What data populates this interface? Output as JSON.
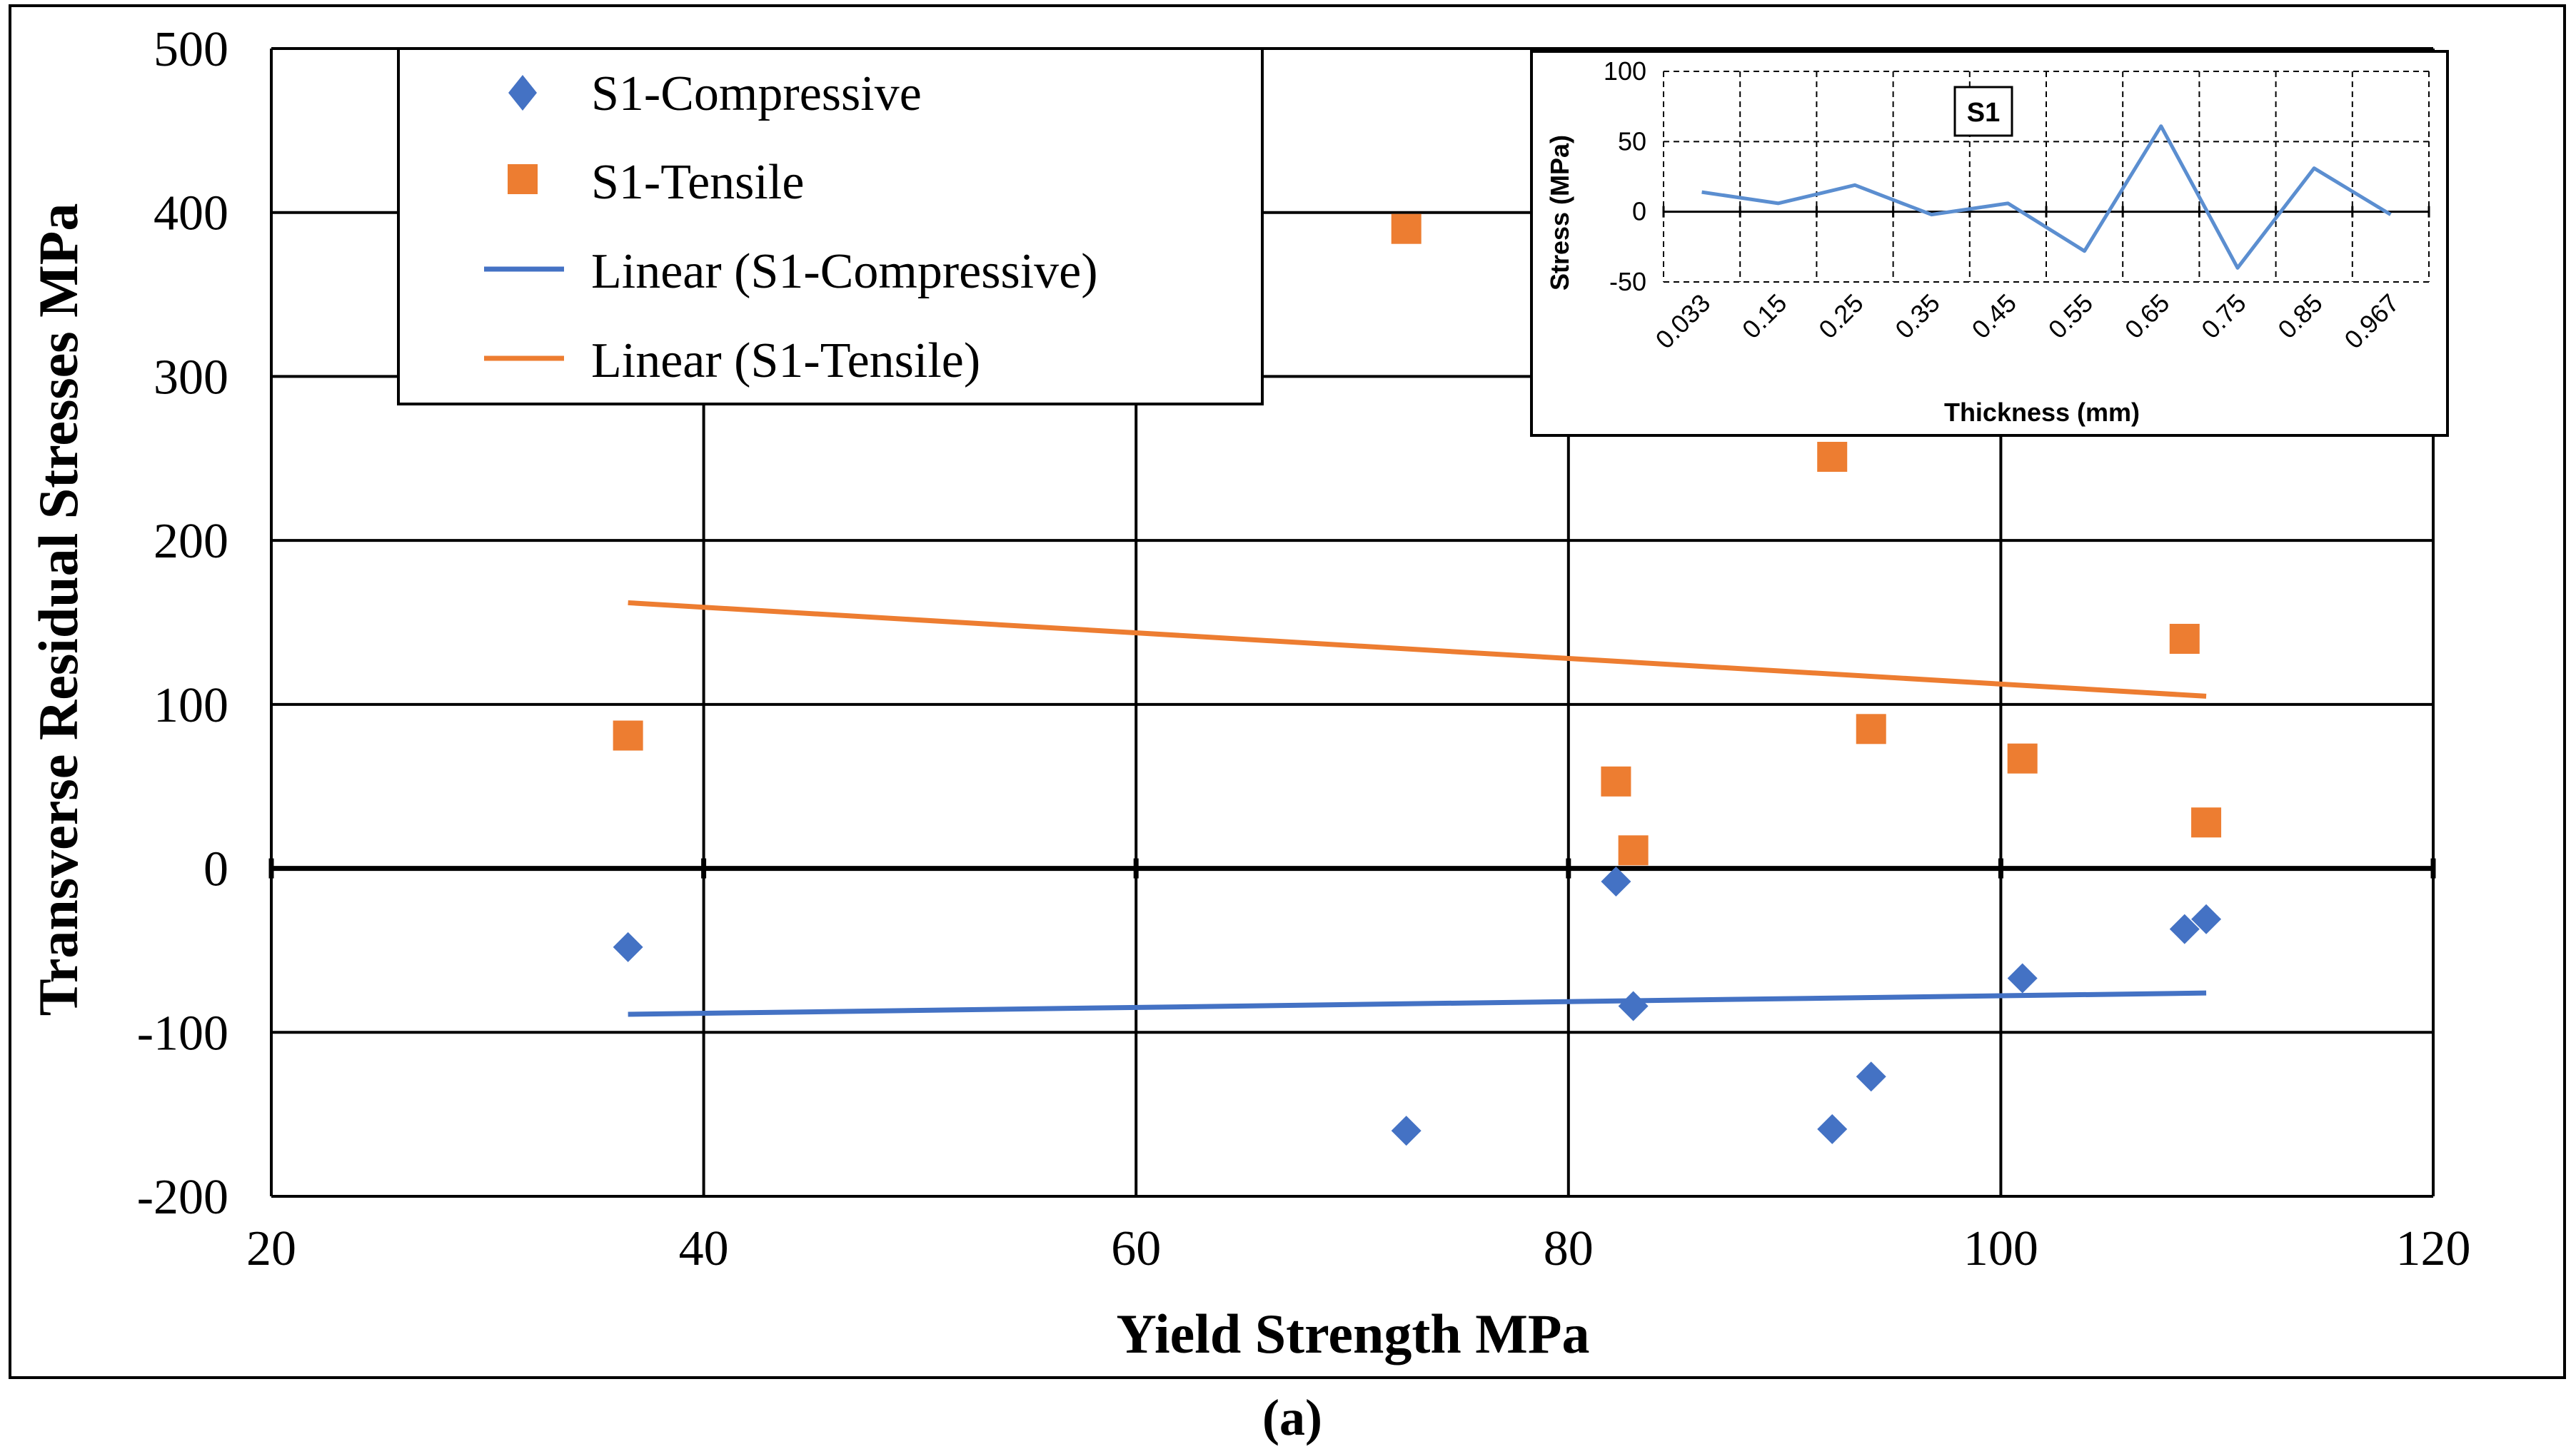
{
  "caption": "(a)",
  "colors": {
    "compressive": "#4472C4",
    "tensile": "#ED7D31",
    "grid": "#000000",
    "inset_line": "#5B8ED0"
  },
  "chart_data": [
    {
      "type": "scatter",
      "title": "",
      "xlabel": "Yield Strength MPa",
      "ylabel": "Transverse Residual Stresses MPa",
      "xlim": [
        20,
        120
      ],
      "ylim": [
        -200,
        500
      ],
      "xticks": [
        20,
        40,
        60,
        80,
        100,
        120
      ],
      "yticks": [
        -200,
        -100,
        0,
        100,
        200,
        300,
        400,
        500
      ],
      "grid": true,
      "legend_position": "top-left",
      "series": [
        {
          "name": "S1-Compressive",
          "marker": "diamond",
          "color": "#4472C4",
          "x": [
            36.5,
            72.5,
            82.2,
            83.0,
            92.2,
            94.0,
            101.0,
            108.5,
            109.5
          ],
          "y": [
            -48,
            -160,
            -8,
            -84,
            -159,
            -127,
            -67,
            -37,
            -31
          ]
        },
        {
          "name": "S1-Tensile",
          "marker": "square",
          "color": "#ED7D31",
          "x": [
            36.5,
            72.5,
            82.2,
            83.0,
            92.2,
            94.0,
            101.0,
            108.5,
            109.5
          ],
          "y": [
            81,
            390,
            53,
            11,
            251,
            85,
            67,
            140,
            28
          ]
        },
        {
          "name": "Linear (S1-Compressive)",
          "type": "line",
          "color": "#4472C4",
          "x": [
            36.5,
            109.5
          ],
          "y": [
            -89,
            -76
          ]
        },
        {
          "name": "Linear (S1-Tensile)",
          "type": "line",
          "color": "#ED7D31",
          "x": [
            36.5,
            109.5
          ],
          "y": [
            162,
            105
          ]
        }
      ]
    },
    {
      "type": "line",
      "title": "S1",
      "xlabel": "Thickness (mm)",
      "ylabel": "Stress (MPa)",
      "ylim": [
        -50,
        100
      ],
      "yticks": [
        -50,
        0,
        50,
        100
      ],
      "grid": true,
      "categories": [
        "0.033",
        "0.15",
        "0.25",
        "0.35",
        "0.45",
        "0.55",
        "0.65",
        "0.75",
        "0.85",
        "0.967"
      ],
      "series": [
        {
          "name": "S1",
          "color": "#5B8ED0",
          "values": [
            14,
            6,
            19,
            -2,
            6,
            -28,
            61,
            -40,
            31,
            -2
          ]
        }
      ]
    }
  ]
}
